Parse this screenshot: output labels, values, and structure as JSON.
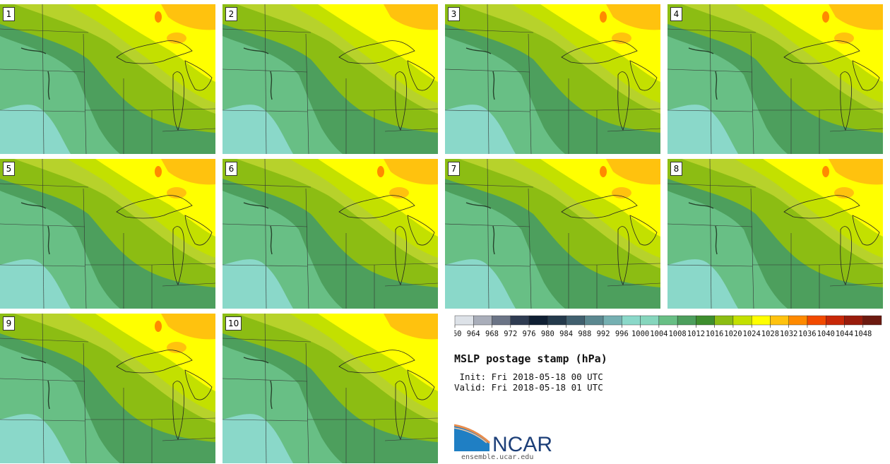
{
  "figure": {
    "title": "MSLP postage stamp (hPa)",
    "init_text": " Init: Fri 2018-05-18 00 UTC",
    "valid_text": "Valid: Fri 2018-05-18 01 UTC",
    "logo_text": "NCAR",
    "website": "ensemble.ucar.edu"
  },
  "members": [
    "1",
    "2",
    "3",
    "4",
    "5",
    "6",
    "7",
    "8",
    "9",
    "10"
  ],
  "colorbar": {
    "ticks": [
      "960",
      "964",
      "968",
      "972",
      "976",
      "980",
      "984",
      "988",
      "992",
      "996",
      "1000",
      "1004",
      "1008",
      "1012",
      "1016",
      "1020",
      "1024",
      "1028",
      "1032",
      "1036",
      "1040",
      "1044",
      "1048"
    ],
    "colors": [
      "#dde2e8",
      "#a9aeba",
      "#6b7486",
      "#2f3c52",
      "#0f1f33",
      "#243a4c",
      "#41606f",
      "#5b8890",
      "#75b0b2",
      "#8ad8c9",
      "#86d6bd",
      "#68bf85",
      "#4d9f5d",
      "#3e8e2e",
      "#8cbd13",
      "#c3e000",
      "#ffff00",
      "#ffc20e",
      "#ff8a00",
      "#f24a00",
      "#c82808",
      "#991c0c",
      "#6c1a10"
    ]
  },
  "map_colors": {
    "p1000": "#8ad8c9",
    "p1008": "#68bf85",
    "p1012": "#4d9f5d",
    "p1016": "#8cbd13",
    "p1020": "#b7d22b",
    "p1024": "#c3e000",
    "p1028": "#ffff00",
    "p1032": "#ffc20e",
    "p1036": "#ff8a00"
  }
}
